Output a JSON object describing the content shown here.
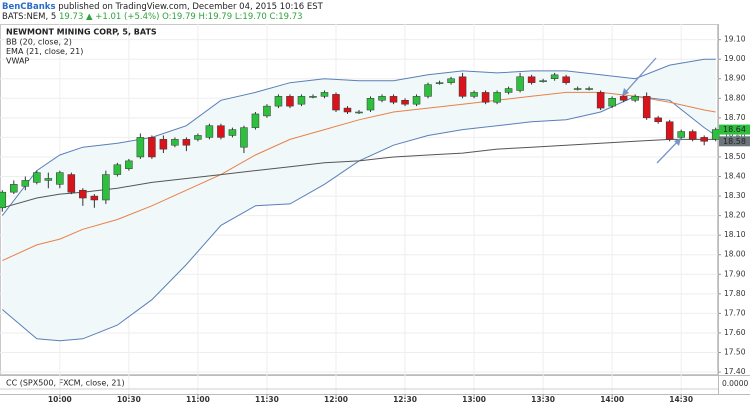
{
  "header": {
    "author": "BenCBanks",
    "text": "published on TradingView.com, December 04, 2015 10:16 EST",
    "symbol": "BATS:NEM, 5",
    "change": "19.73 ▲ +1.01 (+5.4%)",
    "ohlc": "O:19.79 H:19.79 L:19.70 C:19.73"
  },
  "chart_data": {
    "type": "candlestick",
    "title": "NEWMONT MINING CORP, 5, BATS",
    "x": [
      575,
      580,
      585,
      590,
      595,
      600,
      605,
      610,
      615,
      620,
      625,
      630,
      635,
      640,
      645,
      650,
      655,
      660,
      665,
      670,
      675,
      680,
      685,
      690,
      695,
      700,
      705,
      710,
      715,
      720,
      725,
      730,
      735,
      740,
      745,
      750,
      755,
      760,
      765,
      770,
      775,
      780,
      785,
      790,
      795,
      800,
      805,
      810,
      815,
      820,
      825,
      830,
      835,
      840,
      845,
      850,
      855,
      860,
      865,
      870,
      875,
      880,
      885
    ],
    "open": [
      18.24,
      18.32,
      18.35,
      18.37,
      18.38,
      18.36,
      18.41,
      18.33,
      18.3,
      18.28,
      18.41,
      18.44,
      18.5,
      18.6,
      18.59,
      18.56,
      18.59,
      18.59,
      18.6,
      18.66,
      18.61,
      18.55,
      18.65,
      18.71,
      18.76,
      18.81,
      18.77,
      18.81,
      18.81,
      18.82,
      18.75,
      18.73,
      18.74,
      18.79,
      18.81,
      18.79,
      18.77,
      18.81,
      18.88,
      18.88,
      18.91,
      18.81,
      18.83,
      18.78,
      18.83,
      18.84,
      18.91,
      18.89,
      18.9,
      18.91,
      18.85,
      18.85,
      18.83,
      18.76,
      18.81,
      18.79,
      18.81,
      18.7,
      18.68,
      18.6,
      18.63,
      18.6,
      18.59
    ],
    "high": [
      18.33,
      18.38,
      18.4,
      18.43,
      18.42,
      18.43,
      18.42,
      18.34,
      18.31,
      18.43,
      18.47,
      18.49,
      18.62,
      18.61,
      18.61,
      18.6,
      18.6,
      18.62,
      18.67,
      18.67,
      18.65,
      18.66,
      18.73,
      18.77,
      18.82,
      18.82,
      18.82,
      18.82,
      18.84,
      18.83,
      18.76,
      18.74,
      18.81,
      18.82,
      18.82,
      18.8,
      18.82,
      18.88,
      18.89,
      18.91,
      18.93,
      18.84,
      18.84,
      18.84,
      18.86,
      18.93,
      18.92,
      18.9,
      18.93,
      18.92,
      18.86,
      18.86,
      18.84,
      18.81,
      18.82,
      18.82,
      18.83,
      18.71,
      18.69,
      18.64,
      18.64,
      18.61,
      18.65
    ],
    "low": [
      18.22,
      18.31,
      18.33,
      18.36,
      18.34,
      18.34,
      18.31,
      18.25,
      18.24,
      18.26,
      18.4,
      18.43,
      18.49,
      18.49,
      18.52,
      18.55,
      18.53,
      18.58,
      18.59,
      18.59,
      18.6,
      18.52,
      18.64,
      18.7,
      18.75,
      18.75,
      18.76,
      18.8,
      18.8,
      18.73,
      18.72,
      18.72,
      18.73,
      18.78,
      18.77,
      18.76,
      18.76,
      18.8,
      18.87,
      18.87,
      18.8,
      18.8,
      18.77,
      18.77,
      18.82,
      18.83,
      18.87,
      18.88,
      18.89,
      18.87,
      18.84,
      18.84,
      18.74,
      18.75,
      18.78,
      18.78,
      18.69,
      18.67,
      18.58,
      18.59,
      18.58,
      18.56,
      18.58
    ],
    "close": [
      18.32,
      18.36,
      18.38,
      18.42,
      18.39,
      18.42,
      18.32,
      18.29,
      18.28,
      18.41,
      18.46,
      18.48,
      18.6,
      18.5,
      18.54,
      18.59,
      18.56,
      18.61,
      18.66,
      18.6,
      18.64,
      18.65,
      18.72,
      18.76,
      18.81,
      18.76,
      18.81,
      18.81,
      18.83,
      18.74,
      18.73,
      18.73,
      18.8,
      18.81,
      18.78,
      18.77,
      18.81,
      18.87,
      18.88,
      18.9,
      18.81,
      18.83,
      18.78,
      18.83,
      18.85,
      18.91,
      18.88,
      18.89,
      18.92,
      18.88,
      18.85,
      18.85,
      18.75,
      18.8,
      18.79,
      18.81,
      18.7,
      18.68,
      18.59,
      18.63,
      18.59,
      18.58,
      18.64
    ],
    "up_color": "#2fbf3f",
    "down_color": "#d8131b",
    "overlay_x": [
      575,
      590,
      600,
      610,
      625,
      640,
      655,
      670,
      685,
      700,
      715,
      730,
      745,
      760,
      775,
      790,
      805,
      820,
      835,
      850,
      865,
      880,
      885
    ],
    "overlays": [
      {
        "name": "BB (20, close, 2)",
        "color": "#5a7fb8",
        "fill": "#eef7f8",
        "upper": [
          18.2,
          18.43,
          18.51,
          18.55,
          18.57,
          18.6,
          18.66,
          18.79,
          18.83,
          18.88,
          18.9,
          18.89,
          18.89,
          18.92,
          18.94,
          18.93,
          18.94,
          18.94,
          18.92,
          18.9,
          18.97,
          19.0,
          19.0
        ],
        "lower": [
          17.72,
          17.57,
          17.56,
          17.57,
          17.64,
          17.77,
          17.95,
          18.15,
          18.25,
          18.26,
          18.36,
          18.48,
          18.56,
          18.61,
          18.64,
          18.66,
          18.68,
          18.69,
          18.73,
          18.81,
          18.79,
          18.65,
          18.61
        ]
      },
      {
        "name": "EMA (21, close, 21)",
        "color": "#e8814a",
        "values": [
          17.97,
          18.05,
          18.08,
          18.13,
          18.18,
          18.25,
          18.33,
          18.41,
          18.51,
          18.59,
          18.64,
          18.69,
          18.73,
          18.75,
          18.77,
          18.79,
          18.81,
          18.83,
          18.83,
          18.81,
          18.78,
          18.74,
          18.73
        ]
      },
      {
        "name": "VWAP",
        "color": "#555555",
        "values": [
          18.24,
          18.29,
          18.31,
          18.32,
          18.34,
          18.37,
          18.39,
          18.41,
          18.43,
          18.45,
          18.47,
          18.48,
          18.5,
          18.51,
          18.52,
          18.54,
          18.55,
          18.56,
          18.57,
          18.58,
          18.59,
          18.59,
          18.59
        ]
      }
    ],
    "price_labels": [
      {
        "value": 18.64,
        "color": "#2fbf3f"
      },
      {
        "value": 18.58,
        "color": "#6b767c"
      }
    ],
    "xlim": [
      574,
      886
    ],
    "ylim": [
      17.39,
      19.18
    ],
    "grid": true,
    "xticks": [
      {
        "value": 600,
        "label": "10:00"
      },
      {
        "value": 630,
        "label": "10:30"
      },
      {
        "value": 660,
        "label": "11:00"
      },
      {
        "value": 690,
        "label": "11:30"
      },
      {
        "value": 720,
        "label": "12:00"
      },
      {
        "value": 750,
        "label": "12:30"
      },
      {
        "value": 780,
        "label": "13:00"
      },
      {
        "value": 810,
        "label": "13:30"
      },
      {
        "value": 840,
        "label": "14:00"
      },
      {
        "value": 870,
        "label": "14:30"
      }
    ],
    "yticks": [
      {
        "value": 17.4,
        "label": "17.40"
      },
      {
        "value": 17.5,
        "label": "17.50"
      },
      {
        "value": 17.6,
        "label": "17.60"
      },
      {
        "value": 17.7,
        "label": "17.70"
      },
      {
        "value": 17.8,
        "label": "17.80"
      },
      {
        "value": 17.9,
        "label": "17.90"
      },
      {
        "value": 18,
        "label": "18.00"
      },
      {
        "value": 18.1,
        "label": "18.10"
      },
      {
        "value": 18.2,
        "label": "18.20"
      },
      {
        "value": 18.3,
        "label": "18.30"
      },
      {
        "value": 18.4,
        "label": "18.40"
      },
      {
        "value": 18.5,
        "label": "18.50"
      },
      {
        "value": 18.6,
        "label": "18.60"
      },
      {
        "value": 18.7,
        "label": "18.70"
      },
      {
        "value": 18.8,
        "label": "18.80"
      },
      {
        "value": 18.9,
        "label": "18.90"
      },
      {
        "value": 19,
        "label": "19.00"
      },
      {
        "value": 19.1,
        "label": "19.10"
      }
    ],
    "subchart": {
      "title": "CC (SPX500, FXCM, close, 21)",
      "yticks": [
        {
          "value": 0,
          "label": "0.0000"
        }
      ]
    }
  }
}
